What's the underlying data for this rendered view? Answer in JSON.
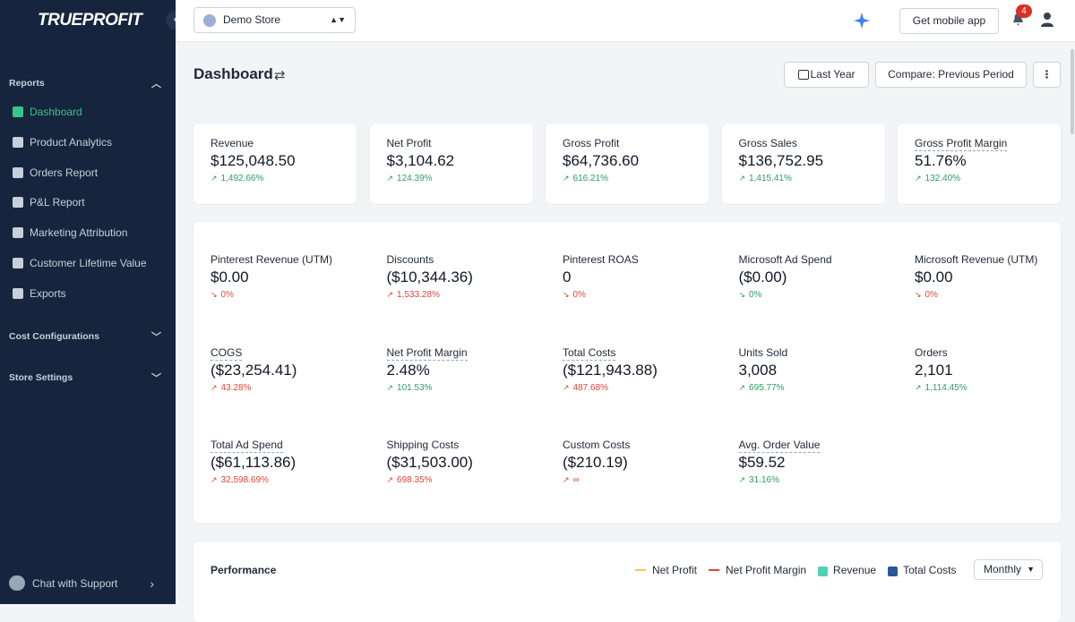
{
  "sidebar": {
    "brand": "TRUEPROFIT",
    "sections": [
      {
        "title": "Reports",
        "items": [
          "Dashboard",
          "Product Analytics",
          "Orders Report",
          "P&L Report",
          "Marketing Attribution",
          "Customer Lifetime Value",
          "Exports"
        ]
      },
      {
        "title": "Cost Configurations"
      },
      {
        "title": "Store Settings"
      }
    ],
    "support": "Chat with Support"
  },
  "topbar": {
    "store": "Demo Store",
    "mobile_button": "Get mobile app",
    "notifications": 4
  },
  "header": {
    "title": "Dashboard",
    "period_button": "Last Year",
    "compare_button": "Compare: Previous Period"
  },
  "summary_cards": [
    {
      "label": "Revenue",
      "value": "$125,048.50",
      "change": "1,492.66%",
      "trend": "up",
      "color": "#2e9d66"
    },
    {
      "label": "Net Profit",
      "value": "$3,104.62",
      "change": "124.39%",
      "trend": "up",
      "color": "#2e9d66"
    },
    {
      "label": "Gross Profit",
      "value": "$64,736.60",
      "change": "616.21%",
      "trend": "up",
      "color": "#2e9d66"
    },
    {
      "label": "Gross Sales",
      "value": "$136,752.95",
      "change": "1,415.41%",
      "trend": "up",
      "color": "#2e9d66"
    },
    {
      "label": "Gross Profit Margin",
      "value": "51.76%",
      "change": "132.40%",
      "trend": "up",
      "color": "#2e9d66",
      "dotted_underline": true
    }
  ],
  "metrics": [
    {
      "label": "Pinterest Revenue (UTM)",
      "value": "$0.00",
      "change": "0%",
      "trend": "down",
      "color": "#e0463a"
    },
    {
      "label": "Discounts",
      "value": "($10,344.36)",
      "change": "1,533.28%",
      "trend": "up",
      "color": "#e0463a"
    },
    {
      "label": "Pinterest ROAS",
      "value": "0",
      "change": "0%",
      "trend": "down",
      "color": "#e0463a"
    },
    {
      "label": "Microsoft Ad Spend",
      "value": "($0.00)",
      "change": "0%",
      "trend": "down",
      "color": "#2e9d66"
    },
    {
      "label": "Microsoft Revenue (UTM)",
      "value": "$0.00",
      "change": "0%",
      "trend": "down",
      "color": "#e0463a"
    },
    {
      "label": "COGS",
      "value": "($23,254.41)",
      "change": "43.28%",
      "trend": "up",
      "color": "#e0463a",
      "dotted_underline": true
    },
    {
      "label": "Net Profit Margin",
      "value": "2.48%",
      "change": "101.53%",
      "trend": "up",
      "color": "#2e9d66",
      "dotted_underline": true
    },
    {
      "label": "Total Costs",
      "value": "($121,943.88)",
      "change": "487.68%",
      "trend": "up",
      "color": "#e0463a",
      "dotted_underline": true
    },
    {
      "label": "Units Sold",
      "value": "3,008",
      "change": "695.77%",
      "trend": "up",
      "color": "#2e9d66"
    },
    {
      "label": "Orders",
      "value": "2,101",
      "change": "1,114.45%",
      "trend": "up",
      "color": "#2e9d66"
    },
    {
      "label": "Total Ad Spend",
      "value": "($61,113.86)",
      "change": "32,598.69%",
      "trend": "up",
      "color": "#e0463a",
      "dotted_underline": true
    },
    {
      "label": "Shipping Costs",
      "value": "($31,503.00)",
      "change": "698.35%",
      "trend": "up",
      "color": "#e0463a"
    },
    {
      "label": "Custom Costs",
      "value": "($210.19)",
      "change": "∞",
      "trend": "up",
      "color": "#e0463a"
    },
    {
      "label": "Avg. Order Value",
      "value": "$59.52",
      "change": "31.16%",
      "trend": "up",
      "color": "#2e9d66",
      "dotted_underline": true
    }
  ],
  "performance": {
    "title": "Performance",
    "legend": [
      {
        "name": "Net Profit",
        "style": "line",
        "color": "#f2c94c"
      },
      {
        "name": "Net Profit Margin",
        "style": "dashed",
        "color": "#e0463a"
      },
      {
        "name": "Revenue",
        "style": "box",
        "color": "#4fd1b5"
      },
      {
        "name": "Total Costs",
        "style": "box",
        "color": "#2c5697"
      }
    ],
    "interval": "Monthly"
  }
}
